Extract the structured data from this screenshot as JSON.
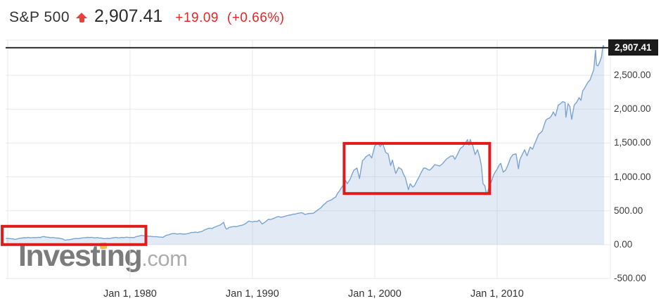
{
  "header": {
    "symbol": "S&P 500",
    "price": "2,907.41",
    "change": "+19.09",
    "change_pct": "(+0.66%)"
  },
  "watermark": {
    "brand": "Investing",
    "domain": ".com"
  },
  "colors": {
    "change_red": "#ee2222",
    "line_blue": "#7aa3d2",
    "area_fill": "rgba(122,163,210,0.22)",
    "grid": "#e9e9e9",
    "price_line": "#2b2b2b",
    "badge_bg": "#1b1b1b",
    "annotation_red": "#e01b1b"
  },
  "chart_data": {
    "type": "area",
    "title": "S&P 500 long-term price history",
    "xlabel": "",
    "ylabel": "",
    "grid": true,
    "legend": "none",
    "x_range": [
      1969.83,
      2019.26
    ],
    "y_range": [
      -500,
      3020
    ],
    "current_price": 2907.41,
    "current_price_label": "2,907.41",
    "yticks": [
      {
        "value": 2500,
        "label": "2,500.00"
      },
      {
        "value": 2000,
        "label": "2,000.00"
      },
      {
        "value": 1500,
        "label": "1,500.00"
      },
      {
        "value": 1000,
        "label": "1,000.00"
      },
      {
        "value": 500,
        "label": "500.00"
      },
      {
        "value": 0,
        "label": "0.00"
      },
      {
        "value": -500,
        "label": "-500.00"
      }
    ],
    "xticks": [
      {
        "year": 1980,
        "label": "Jan 1, 1980"
      },
      {
        "year": 1990,
        "label": "Jan 1, 1990"
      },
      {
        "year": 2000,
        "label": "Jan 1, 2000"
      },
      {
        "year": 2010,
        "label": "Jan 1, 2010"
      }
    ],
    "grid_years": [
      1970,
      1980,
      1990,
      2000,
      2010
    ],
    "annotations": [
      {
        "name": "seventies-flat-range",
        "year_start": 1969.55,
        "year_end": 1981.3,
        "value_low": 0,
        "value_high": 270
      },
      {
        "name": "dotcom-and-housing-bubbles",
        "year_start": 1997.5,
        "year_end": 2009.4,
        "value_low": 755,
        "value_high": 1495
      }
    ],
    "series": [
      {
        "name": "S&P 500",
        "points": [
          [
            1969.85,
            90
          ],
          [
            1970.0,
            92
          ],
          [
            1970.3,
            88
          ],
          [
            1970.6,
            76
          ],
          [
            1971.0,
            94
          ],
          [
            1971.5,
            100
          ],
          [
            1972.0,
            103
          ],
          [
            1972.5,
            108
          ],
          [
            1973.0,
            118
          ],
          [
            1973.3,
            110
          ],
          [
            1973.7,
            105
          ],
          [
            1974.0,
            96
          ],
          [
            1974.3,
            90
          ],
          [
            1974.7,
            64
          ],
          [
            1975.0,
            72
          ],
          [
            1975.4,
            88
          ],
          [
            1975.8,
            89
          ],
          [
            1976.2,
            101
          ],
          [
            1976.7,
            104
          ],
          [
            1977.0,
            102
          ],
          [
            1977.5,
            97
          ],
          [
            1978.0,
            89
          ],
          [
            1978.3,
            89
          ],
          [
            1978.7,
            102
          ],
          [
            1979.0,
            100
          ],
          [
            1979.5,
            102
          ],
          [
            1979.8,
            108
          ],
          [
            1980.1,
            106
          ],
          [
            1980.3,
            102
          ],
          [
            1980.7,
            125
          ],
          [
            1980.95,
            136
          ],
          [
            1981.3,
            132
          ],
          [
            1981.7,
            122
          ],
          [
            1982.0,
            117
          ],
          [
            1982.4,
            111
          ],
          [
            1982.7,
            107
          ],
          [
            1983.0,
            140
          ],
          [
            1983.5,
            162
          ],
          [
            1984.0,
            160
          ],
          [
            1984.4,
            154
          ],
          [
            1984.8,
            166
          ],
          [
            1985.2,
            180
          ],
          [
            1985.7,
            188
          ],
          [
            1986.0,
            208
          ],
          [
            1986.4,
            238
          ],
          [
            1986.7,
            236
          ],
          [
            1987.0,
            264
          ],
          [
            1987.4,
            292
          ],
          [
            1987.65,
            330
          ],
          [
            1987.8,
            250
          ],
          [
            1987.9,
            228
          ],
          [
            1988.1,
            255
          ],
          [
            1988.5,
            268
          ],
          [
            1988.9,
            278
          ],
          [
            1989.3,
            295
          ],
          [
            1989.7,
            348
          ],
          [
            1990.0,
            335
          ],
          [
            1990.4,
            340
          ],
          [
            1990.55,
            362
          ],
          [
            1990.8,
            305
          ],
          [
            1991.0,
            328
          ],
          [
            1991.3,
            373
          ],
          [
            1991.7,
            385
          ],
          [
            1992.0,
            410
          ],
          [
            1992.5,
            410
          ],
          [
            1993.0,
            435
          ],
          [
            1993.5,
            450
          ],
          [
            1994.0,
            472
          ],
          [
            1994.3,
            445
          ],
          [
            1994.7,
            460
          ],
          [
            1995.0,
            465
          ],
          [
            1995.4,
            520
          ],
          [
            1995.8,
            585
          ],
          [
            1996.1,
            635
          ],
          [
            1996.5,
            665
          ],
          [
            1996.8,
            700
          ],
          [
            1997.1,
            790
          ],
          [
            1997.45,
            880
          ],
          [
            1997.6,
            950
          ],
          [
            1997.75,
            900
          ],
          [
            1998.0,
            970
          ],
          [
            1998.3,
            1100
          ],
          [
            1998.55,
            1130
          ],
          [
            1998.75,
            975
          ],
          [
            1999.0,
            1240
          ],
          [
            1999.3,
            1300
          ],
          [
            1999.55,
            1330
          ],
          [
            1999.75,
            1280
          ],
          [
            2000.0,
            1455
          ],
          [
            2000.25,
            1500
          ],
          [
            2000.45,
            1450
          ],
          [
            2000.65,
            1490
          ],
          [
            2000.9,
            1360
          ],
          [
            2001.1,
            1340
          ],
          [
            2001.3,
            1170
          ],
          [
            2001.45,
            1250
          ],
          [
            2001.72,
            1050
          ],
          [
            2001.95,
            1140
          ],
          [
            2002.2,
            1110
          ],
          [
            2002.5,
            990
          ],
          [
            2002.75,
            810
          ],
          [
            2002.9,
            900
          ],
          [
            2003.1,
            850
          ],
          [
            2003.25,
            870
          ],
          [
            2003.6,
            990
          ],
          [
            2004.0,
            1130
          ],
          [
            2004.5,
            1100
          ],
          [
            2004.9,
            1180
          ],
          [
            2005.3,
            1160
          ],
          [
            2005.7,
            1230
          ],
          [
            2006.0,
            1280
          ],
          [
            2006.4,
            1310
          ],
          [
            2006.55,
            1260
          ],
          [
            2007.0,
            1420
          ],
          [
            2007.4,
            1500
          ],
          [
            2007.58,
            1550
          ],
          [
            2007.7,
            1470
          ],
          [
            2007.8,
            1550
          ],
          [
            2008.0,
            1470
          ],
          [
            2008.2,
            1330
          ],
          [
            2008.4,
            1400
          ],
          [
            2008.6,
            1280
          ],
          [
            2008.72,
            1160
          ],
          [
            2008.85,
            900
          ],
          [
            2009.0,
            870
          ],
          [
            2009.15,
            735
          ],
          [
            2009.4,
            880
          ],
          [
            2009.7,
            1020
          ],
          [
            2010.0,
            1115
          ],
          [
            2010.3,
            1200
          ],
          [
            2010.5,
            1070
          ],
          [
            2010.7,
            1100
          ],
          [
            2010.9,
            1180
          ],
          [
            2011.1,
            1280
          ],
          [
            2011.3,
            1330
          ],
          [
            2011.55,
            1340
          ],
          [
            2011.75,
            1120
          ],
          [
            2011.85,
            1250
          ],
          [
            2012.0,
            1310
          ],
          [
            2012.25,
            1400
          ],
          [
            2012.45,
            1310
          ],
          [
            2012.7,
            1440
          ],
          [
            2012.9,
            1410
          ],
          [
            2013.1,
            1500
          ],
          [
            2013.4,
            1630
          ],
          [
            2013.7,
            1680
          ],
          [
            2014.0,
            1840
          ],
          [
            2014.3,
            1870
          ],
          [
            2014.6,
            1960
          ],
          [
            2014.77,
            1900
          ],
          [
            2015.0,
            2060
          ],
          [
            2015.35,
            2110
          ],
          [
            2015.55,
            2100
          ],
          [
            2015.63,
            1880
          ],
          [
            2015.8,
            2080
          ],
          [
            2015.95,
            2040
          ],
          [
            2016.1,
            1850
          ],
          [
            2016.3,
            2060
          ],
          [
            2016.5,
            2100
          ],
          [
            2016.7,
            2170
          ],
          [
            2016.85,
            2130
          ],
          [
            2017.0,
            2270
          ],
          [
            2017.3,
            2360
          ],
          [
            2017.6,
            2430
          ],
          [
            2017.9,
            2580
          ],
          [
            2018.05,
            2870
          ],
          [
            2018.12,
            2650
          ],
          [
            2018.25,
            2640
          ],
          [
            2018.4,
            2700
          ],
          [
            2018.55,
            2780
          ],
          [
            2018.62,
            2900
          ],
          [
            2018.68,
            2940
          ],
          [
            2018.75,
            2907.41
          ]
        ]
      }
    ]
  }
}
